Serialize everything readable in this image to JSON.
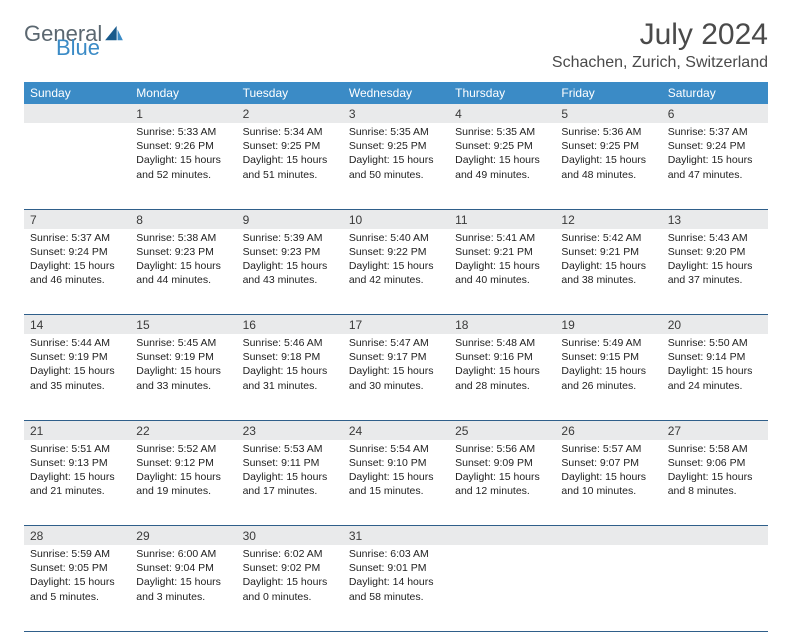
{
  "logo": {
    "text1": "General",
    "text2": "Blue",
    "color_general": "#5b6770",
    "color_blue": "#3b8bc6"
  },
  "title": "July 2024",
  "location": "Schachen, Zurich, Switzerland",
  "header_bg": "#3b8bc6",
  "daynum_bg": "#e9eaeb",
  "border_color": "#2f5f8a",
  "weekdays": [
    "Sunday",
    "Monday",
    "Tuesday",
    "Wednesday",
    "Thursday",
    "Friday",
    "Saturday"
  ],
  "weeks": [
    [
      null,
      {
        "n": "1",
        "sr": "Sunrise: 5:33 AM",
        "ss": "Sunset: 9:26 PM",
        "dl": "Daylight: 15 hours and 52 minutes."
      },
      {
        "n": "2",
        "sr": "Sunrise: 5:34 AM",
        "ss": "Sunset: 9:25 PM",
        "dl": "Daylight: 15 hours and 51 minutes."
      },
      {
        "n": "3",
        "sr": "Sunrise: 5:35 AM",
        "ss": "Sunset: 9:25 PM",
        "dl": "Daylight: 15 hours and 50 minutes."
      },
      {
        "n": "4",
        "sr": "Sunrise: 5:35 AM",
        "ss": "Sunset: 9:25 PM",
        "dl": "Daylight: 15 hours and 49 minutes."
      },
      {
        "n": "5",
        "sr": "Sunrise: 5:36 AM",
        "ss": "Sunset: 9:25 PM",
        "dl": "Daylight: 15 hours and 48 minutes."
      },
      {
        "n": "6",
        "sr": "Sunrise: 5:37 AM",
        "ss": "Sunset: 9:24 PM",
        "dl": "Daylight: 15 hours and 47 minutes."
      }
    ],
    [
      {
        "n": "7",
        "sr": "Sunrise: 5:37 AM",
        "ss": "Sunset: 9:24 PM",
        "dl": "Daylight: 15 hours and 46 minutes."
      },
      {
        "n": "8",
        "sr": "Sunrise: 5:38 AM",
        "ss": "Sunset: 9:23 PM",
        "dl": "Daylight: 15 hours and 44 minutes."
      },
      {
        "n": "9",
        "sr": "Sunrise: 5:39 AM",
        "ss": "Sunset: 9:23 PM",
        "dl": "Daylight: 15 hours and 43 minutes."
      },
      {
        "n": "10",
        "sr": "Sunrise: 5:40 AM",
        "ss": "Sunset: 9:22 PM",
        "dl": "Daylight: 15 hours and 42 minutes."
      },
      {
        "n": "11",
        "sr": "Sunrise: 5:41 AM",
        "ss": "Sunset: 9:21 PM",
        "dl": "Daylight: 15 hours and 40 minutes."
      },
      {
        "n": "12",
        "sr": "Sunrise: 5:42 AM",
        "ss": "Sunset: 9:21 PM",
        "dl": "Daylight: 15 hours and 38 minutes."
      },
      {
        "n": "13",
        "sr": "Sunrise: 5:43 AM",
        "ss": "Sunset: 9:20 PM",
        "dl": "Daylight: 15 hours and 37 minutes."
      }
    ],
    [
      {
        "n": "14",
        "sr": "Sunrise: 5:44 AM",
        "ss": "Sunset: 9:19 PM",
        "dl": "Daylight: 15 hours and 35 minutes."
      },
      {
        "n": "15",
        "sr": "Sunrise: 5:45 AM",
        "ss": "Sunset: 9:19 PM",
        "dl": "Daylight: 15 hours and 33 minutes."
      },
      {
        "n": "16",
        "sr": "Sunrise: 5:46 AM",
        "ss": "Sunset: 9:18 PM",
        "dl": "Daylight: 15 hours and 31 minutes."
      },
      {
        "n": "17",
        "sr": "Sunrise: 5:47 AM",
        "ss": "Sunset: 9:17 PM",
        "dl": "Daylight: 15 hours and 30 minutes."
      },
      {
        "n": "18",
        "sr": "Sunrise: 5:48 AM",
        "ss": "Sunset: 9:16 PM",
        "dl": "Daylight: 15 hours and 28 minutes."
      },
      {
        "n": "19",
        "sr": "Sunrise: 5:49 AM",
        "ss": "Sunset: 9:15 PM",
        "dl": "Daylight: 15 hours and 26 minutes."
      },
      {
        "n": "20",
        "sr": "Sunrise: 5:50 AM",
        "ss": "Sunset: 9:14 PM",
        "dl": "Daylight: 15 hours and 24 minutes."
      }
    ],
    [
      {
        "n": "21",
        "sr": "Sunrise: 5:51 AM",
        "ss": "Sunset: 9:13 PM",
        "dl": "Daylight: 15 hours and 21 minutes."
      },
      {
        "n": "22",
        "sr": "Sunrise: 5:52 AM",
        "ss": "Sunset: 9:12 PM",
        "dl": "Daylight: 15 hours and 19 minutes."
      },
      {
        "n": "23",
        "sr": "Sunrise: 5:53 AM",
        "ss": "Sunset: 9:11 PM",
        "dl": "Daylight: 15 hours and 17 minutes."
      },
      {
        "n": "24",
        "sr": "Sunrise: 5:54 AM",
        "ss": "Sunset: 9:10 PM",
        "dl": "Daylight: 15 hours and 15 minutes."
      },
      {
        "n": "25",
        "sr": "Sunrise: 5:56 AM",
        "ss": "Sunset: 9:09 PM",
        "dl": "Daylight: 15 hours and 12 minutes."
      },
      {
        "n": "26",
        "sr": "Sunrise: 5:57 AM",
        "ss": "Sunset: 9:07 PM",
        "dl": "Daylight: 15 hours and 10 minutes."
      },
      {
        "n": "27",
        "sr": "Sunrise: 5:58 AM",
        "ss": "Sunset: 9:06 PM",
        "dl": "Daylight: 15 hours and 8 minutes."
      }
    ],
    [
      {
        "n": "28",
        "sr": "Sunrise: 5:59 AM",
        "ss": "Sunset: 9:05 PM",
        "dl": "Daylight: 15 hours and 5 minutes."
      },
      {
        "n": "29",
        "sr": "Sunrise: 6:00 AM",
        "ss": "Sunset: 9:04 PM",
        "dl": "Daylight: 15 hours and 3 minutes."
      },
      {
        "n": "30",
        "sr": "Sunrise: 6:02 AM",
        "ss": "Sunset: 9:02 PM",
        "dl": "Daylight: 15 hours and 0 minutes."
      },
      {
        "n": "31",
        "sr": "Sunrise: 6:03 AM",
        "ss": "Sunset: 9:01 PM",
        "dl": "Daylight: 14 hours and 58 minutes."
      },
      null,
      null,
      null
    ]
  ]
}
